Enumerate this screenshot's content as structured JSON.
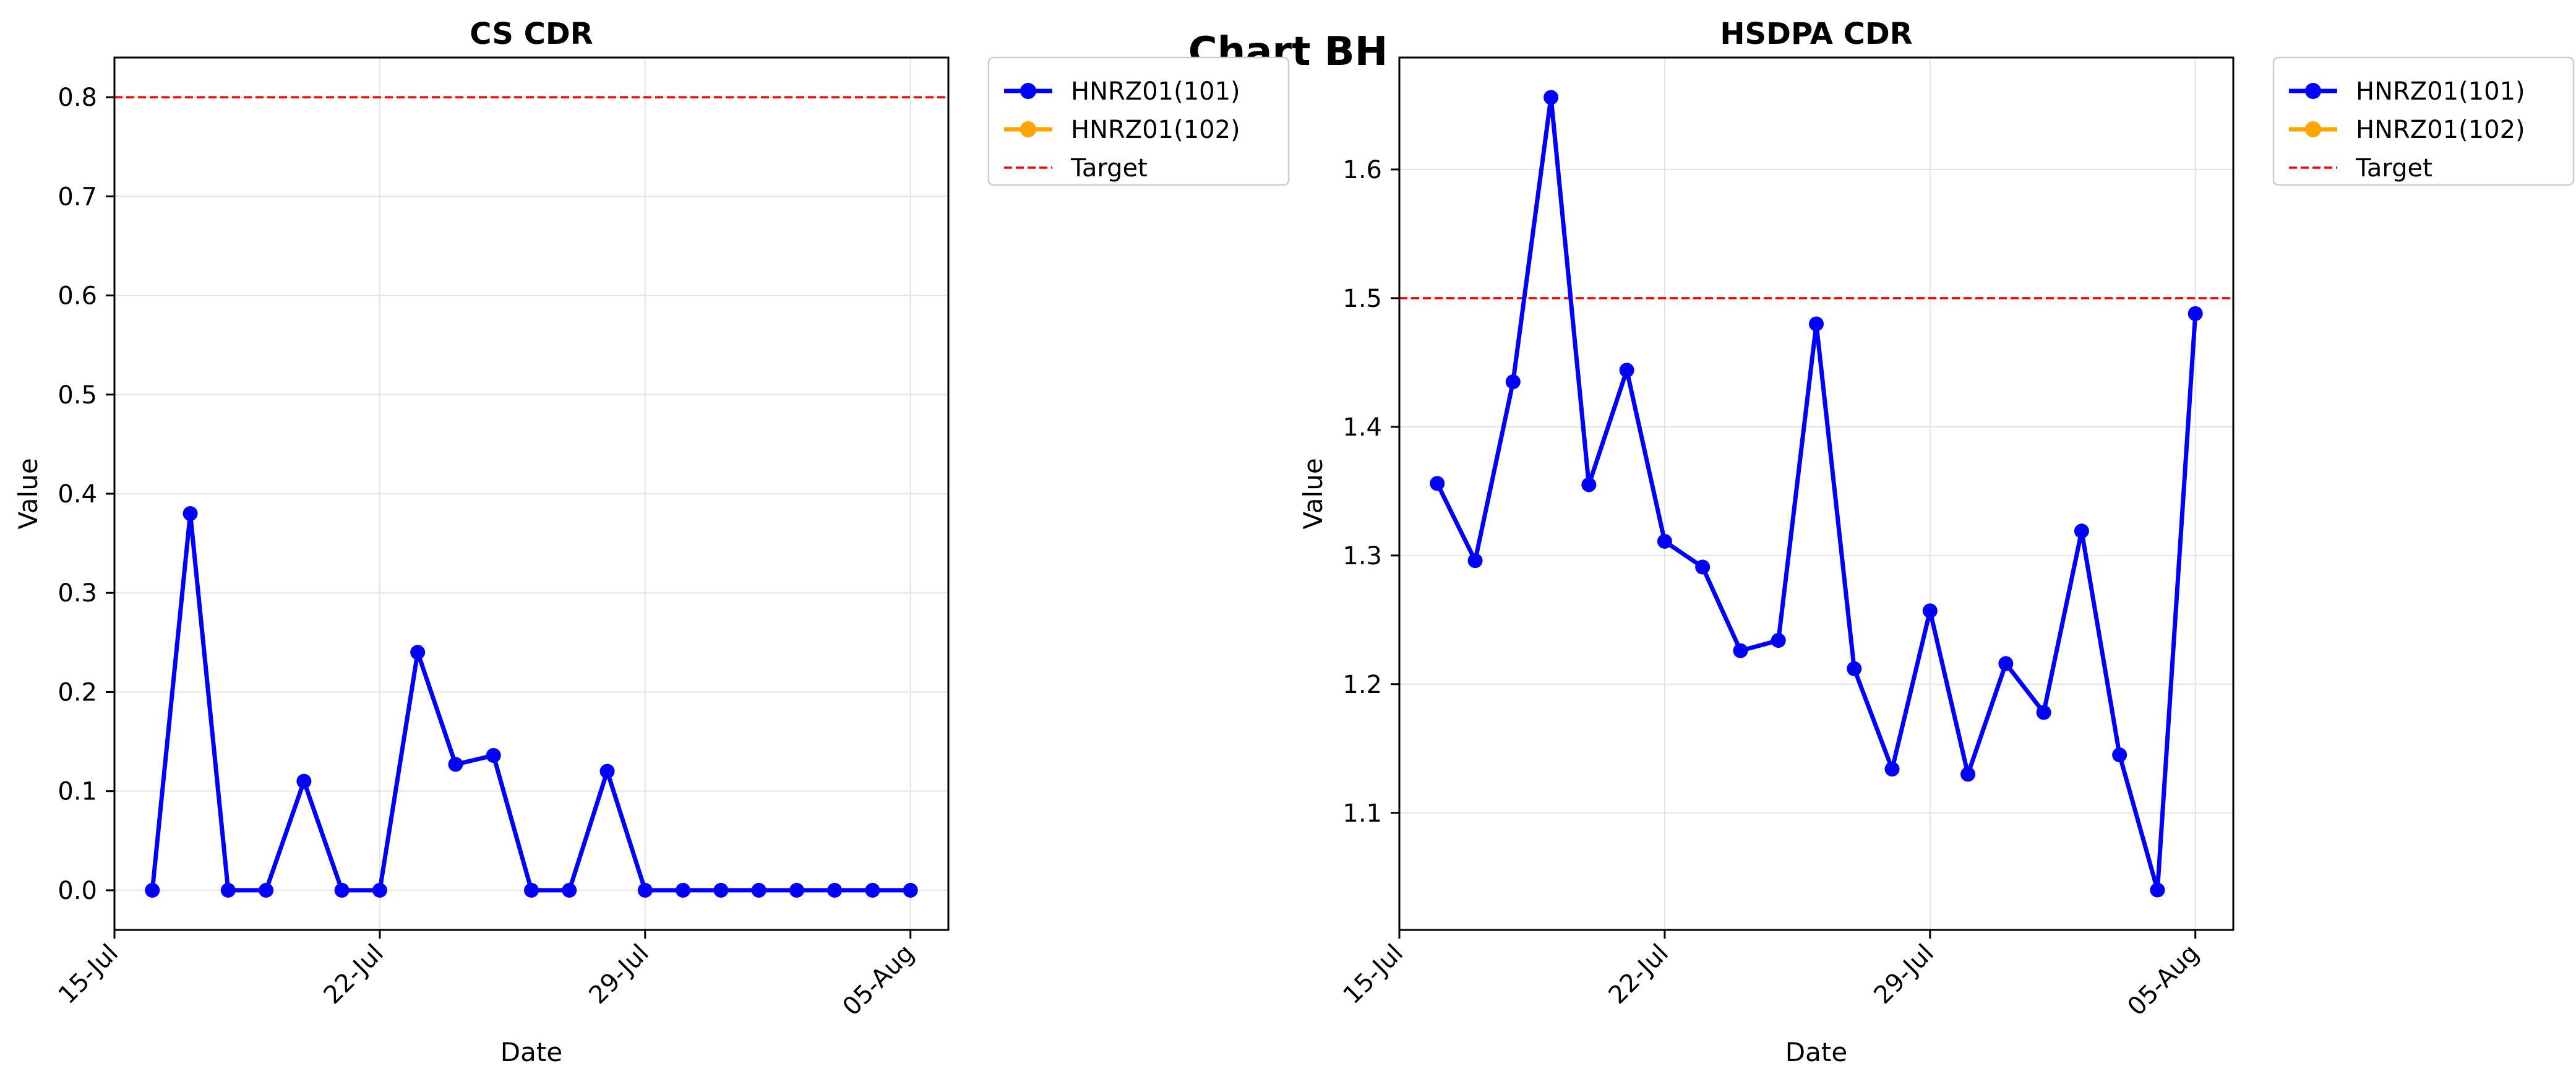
{
  "figure": {
    "suptitle": "Chart BH"
  },
  "chart_data": [
    {
      "type": "line",
      "title": "CS CDR",
      "xlabel": "Date",
      "ylabel": "Value",
      "x_dates": [
        "2025-07-16",
        "2025-07-17",
        "2025-07-18",
        "2025-07-19",
        "2025-07-20",
        "2025-07-21",
        "2025-07-22",
        "2025-07-23",
        "2025-07-24",
        "2025-07-25",
        "2025-07-26",
        "2025-07-27",
        "2025-07-28",
        "2025-07-29",
        "2025-07-30",
        "2025-07-31",
        "2025-08-01",
        "2025-08-02",
        "2025-08-03",
        "2025-08-04",
        "2025-08-05"
      ],
      "x_ticks": [
        "2025-07-15",
        "2025-07-22",
        "2025-07-29",
        "2025-08-05"
      ],
      "x_tick_labels": [
        "15-Jul",
        "22-Jul",
        "29-Jul",
        "05-Aug"
      ],
      "xlim": [
        "2025-07-15",
        "2025-08-06"
      ],
      "ylim": [
        -0.04,
        0.84
      ],
      "y_ticks": [
        0.0,
        0.1,
        0.2,
        0.3,
        0.4,
        0.5,
        0.6,
        0.7,
        0.8
      ],
      "y_tick_labels": [
        "0.0",
        "0.1",
        "0.2",
        "0.3",
        "0.4",
        "0.5",
        "0.6",
        "0.7",
        "0.8"
      ],
      "grid": true,
      "legend_position": "outside-right-top",
      "series": [
        {
          "name": "HNRZ01(101)",
          "color": "#0000ff",
          "marker": "circle",
          "values": [
            0.0,
            0.38,
            0.0,
            0.0,
            0.11,
            0.0,
            0.0,
            0.24,
            0.127,
            0.136,
            0.0,
            0.0,
            0.12,
            0.0,
            0.0,
            0.0,
            0.0,
            0.0,
            0.0,
            0.0,
            0.0
          ]
        },
        {
          "name": "HNRZ01(102)",
          "color": "#ffa500",
          "marker": "circle",
          "values": []
        }
      ],
      "target": {
        "name": "Target",
        "value": 0.8,
        "color": "#ff0000",
        "style": "dashed"
      }
    },
    {
      "type": "line",
      "title": "HSDPA CDR",
      "xlabel": "Date",
      "ylabel": "Value",
      "x_dates": [
        "2025-07-16",
        "2025-07-17",
        "2025-07-18",
        "2025-07-19",
        "2025-07-20",
        "2025-07-21",
        "2025-07-22",
        "2025-07-23",
        "2025-07-24",
        "2025-07-25",
        "2025-07-26",
        "2025-07-27",
        "2025-07-28",
        "2025-07-29",
        "2025-07-30",
        "2025-07-31",
        "2025-08-01",
        "2025-08-02",
        "2025-08-03",
        "2025-08-04",
        "2025-08-05"
      ],
      "x_ticks": [
        "2025-07-15",
        "2025-07-22",
        "2025-07-29",
        "2025-08-05"
      ],
      "x_tick_labels": [
        "15-Jul",
        "22-Jul",
        "29-Jul",
        "05-Aug"
      ],
      "xlim": [
        "2025-07-15",
        "2025-08-06"
      ],
      "ylim": [
        1.009,
        1.687
      ],
      "y_ticks": [
        1.1,
        1.2,
        1.3,
        1.4,
        1.5,
        1.6
      ],
      "y_tick_labels": [
        "1.1",
        "1.2",
        "1.3",
        "1.4",
        "1.5",
        "1.6"
      ],
      "grid": true,
      "legend_position": "outside-right-top",
      "series": [
        {
          "name": "HNRZ01(101)",
          "color": "#0000ff",
          "marker": "circle",
          "values": [
            1.356,
            1.296,
            1.435,
            1.656,
            1.355,
            1.444,
            1.311,
            1.291,
            1.226,
            1.234,
            1.48,
            1.212,
            1.134,
            1.257,
            1.13,
            1.216,
            1.178,
            1.319,
            1.145,
            1.04,
            1.488
          ]
        },
        {
          "name": "HNRZ01(102)",
          "color": "#ffa500",
          "marker": "circle",
          "values": []
        }
      ],
      "target": {
        "name": "Target",
        "value": 1.5,
        "color": "#ff0000",
        "style": "dashed"
      }
    }
  ]
}
